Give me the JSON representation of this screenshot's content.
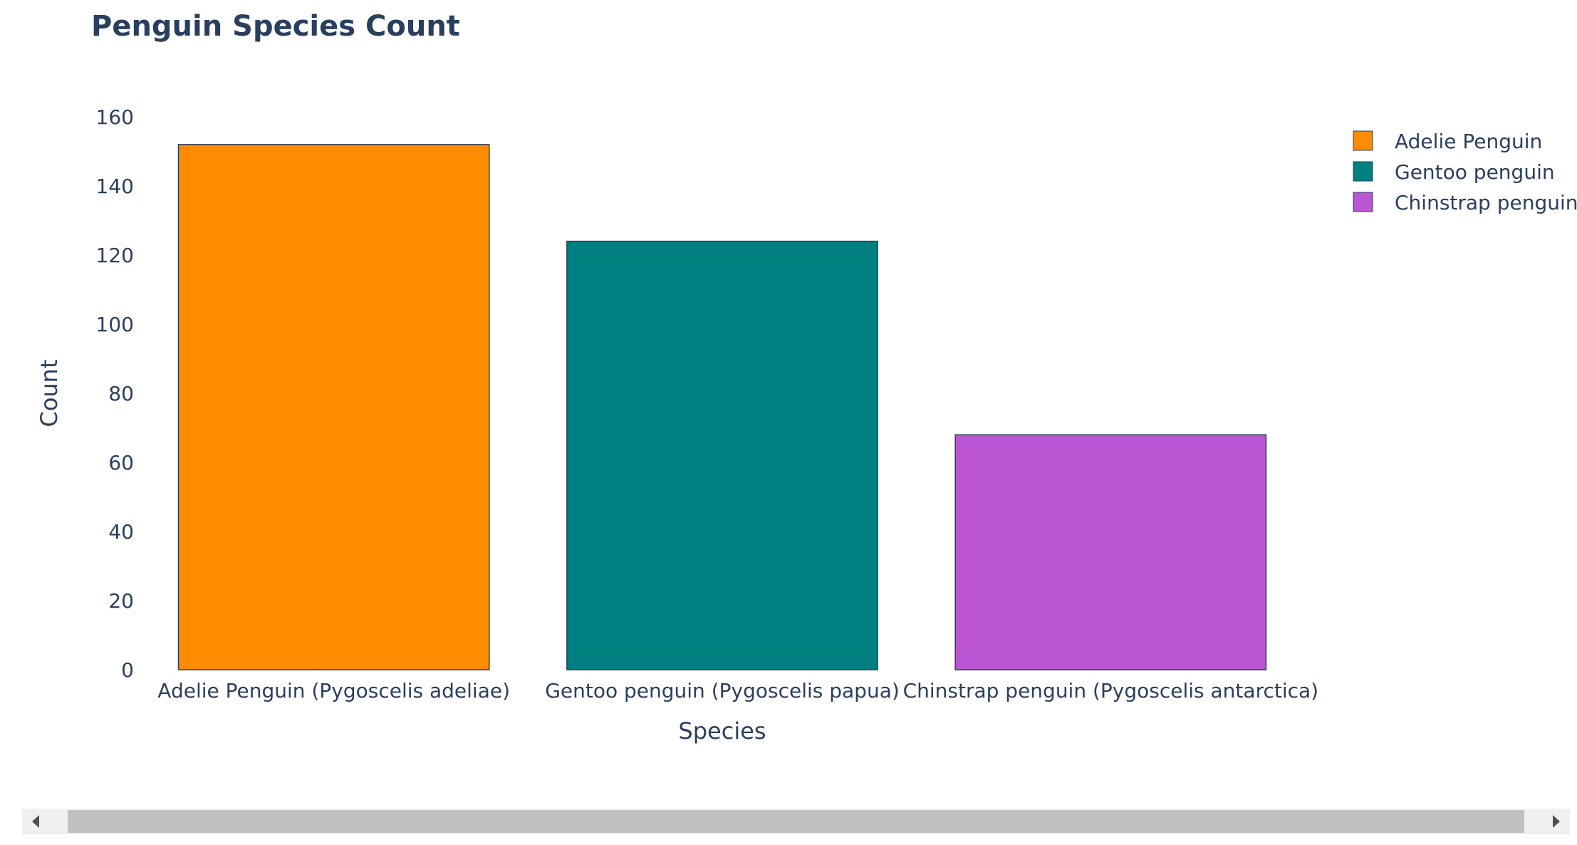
{
  "colors": {
    "text": "#2a3f5f",
    "bar_outline": "#2a3f5f",
    "scrollbar_track": "#f0f0f0",
    "scrollbar_thumb": "#c1c1c1",
    "scroll_arrow": "#505050"
  },
  "chart_data": {
    "type": "bar",
    "title": "Penguin Species Count",
    "xlabel": "Species",
    "ylabel": "Count",
    "categories": [
      "Adelie Penguin (Pygoscelis adeliae)",
      "Gentoo penguin (Pygoscelis papua)",
      "Chinstrap penguin (Pygoscelis antarctica)"
    ],
    "values": [
      152,
      124,
      68
    ],
    "ylim": [
      0,
      160
    ],
    "yticks": [
      0,
      20,
      40,
      60,
      80,
      100,
      120,
      140,
      160
    ],
    "grid": false,
    "legend": {
      "placement": "top-right",
      "entries": [
        {
          "name": "Adelie Penguin",
          "color": "#ff8c00"
        },
        {
          "name": "Gentoo penguin",
          "color": "#008080"
        },
        {
          "name": "Chinstrap penguin",
          "color": "#ba55d3"
        }
      ]
    },
    "bar_colors": [
      "#ff8c00",
      "#008080",
      "#ba55d3"
    ]
  },
  "scrollbar": {
    "left_icon": "scroll-left-arrow-icon",
    "right_icon": "scroll-right-arrow-icon"
  }
}
